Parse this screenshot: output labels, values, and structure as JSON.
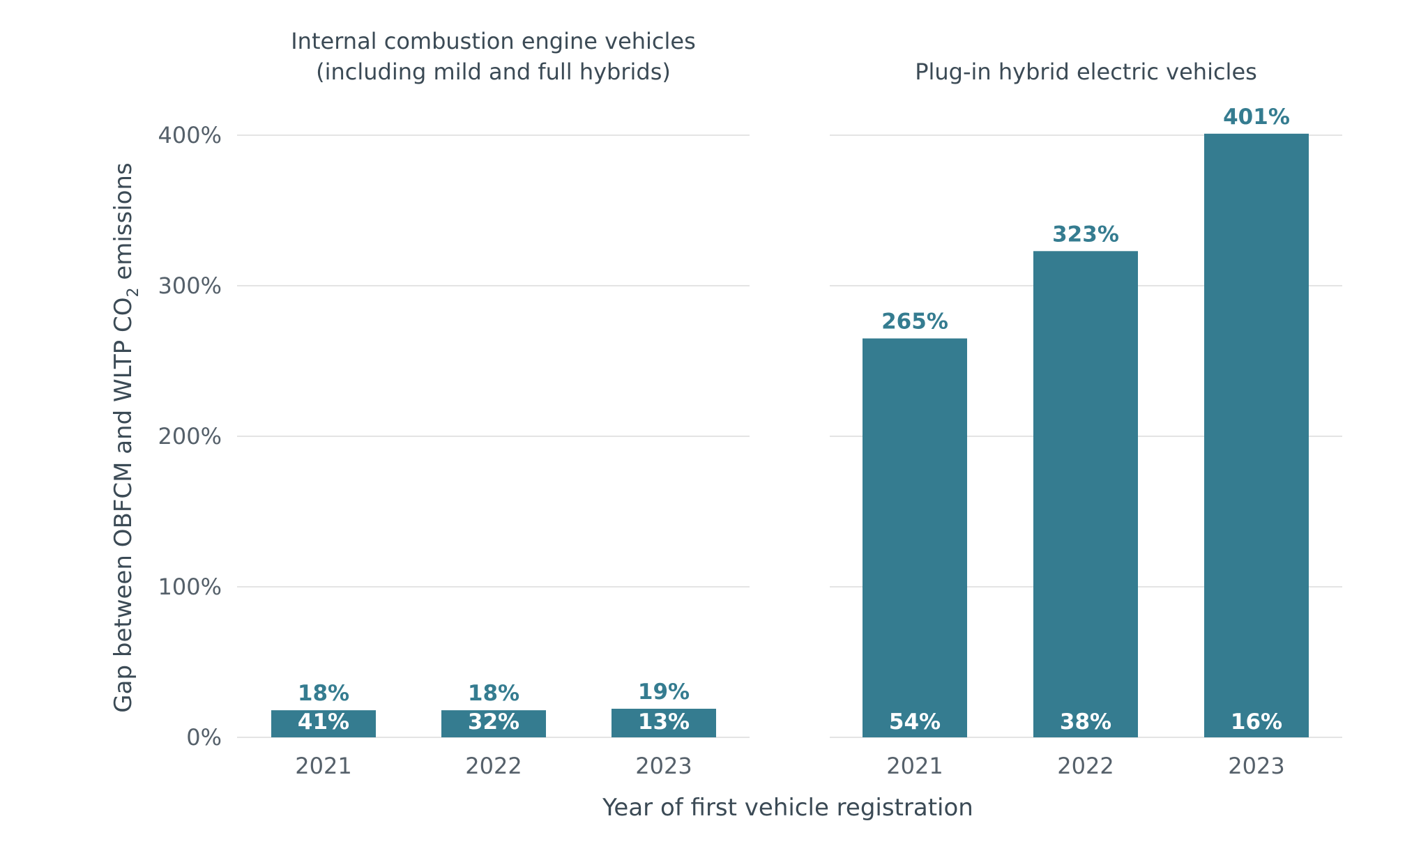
{
  "chart_data": {
    "type": "bar",
    "ylabel_parts": [
      "Gap between OBFCM and WLTP CO",
      "2",
      " emissions"
    ],
    "xlabel": "Year of first vehicle registration",
    "ylim": [
      0,
      400
    ],
    "yticks": [
      "0%",
      "100%",
      "200%",
      "300%",
      "400%"
    ],
    "ytick_values": [
      0,
      100,
      200,
      300,
      400
    ],
    "grid": true,
    "bar_color": "#357c90",
    "label_color": "#357c90",
    "panels": [
      {
        "title_lines": [
          "Internal combustion engine vehicles",
          "(including mild and full hybrids)"
        ],
        "categories": [
          "2021",
          "2022",
          "2023"
        ],
        "values": [
          18,
          18,
          19
        ],
        "value_labels": [
          "18%",
          "18%",
          "19%"
        ],
        "inner_labels": [
          "41%",
          "32%",
          "13%"
        ]
      },
      {
        "title_lines": [
          "Plug-in hybrid electric vehicles"
        ],
        "categories": [
          "2021",
          "2022",
          "2023"
        ],
        "values": [
          265,
          323,
          401
        ],
        "value_labels": [
          "265%",
          "323%",
          "401%"
        ],
        "inner_labels": [
          "54%",
          "38%",
          "16%"
        ]
      }
    ]
  }
}
